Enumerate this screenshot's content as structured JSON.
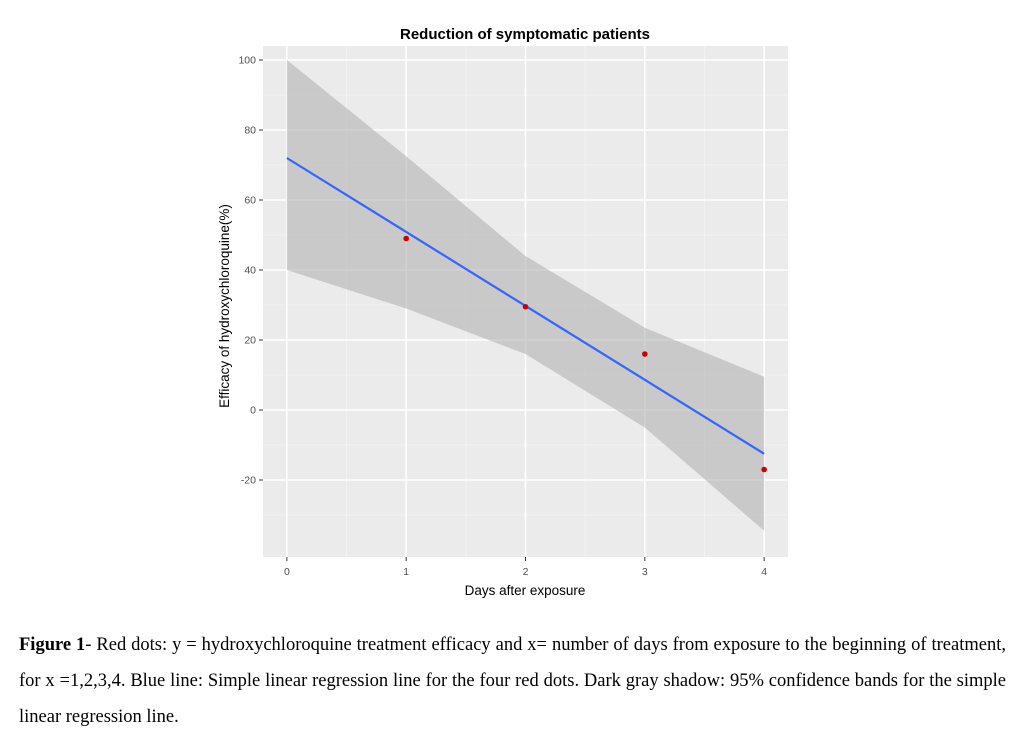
{
  "chart_data": {
    "type": "line",
    "title": "Reduction of symptomatic patients",
    "xlabel": "Days after exposure",
    "ylabel": "Efficacy of hydroxychloroquine(%)",
    "xlim": [
      -0.2,
      4.2
    ],
    "ylim": [
      -42,
      104
    ],
    "x_ticks": [
      0,
      1,
      2,
      3,
      4
    ],
    "y_ticks": [
      -20,
      0,
      20,
      40,
      60,
      80,
      100
    ],
    "grid": true,
    "legend": "none",
    "series": [
      {
        "kind": "points",
        "color": "#cc0000",
        "x": [
          1,
          2,
          3,
          4
        ],
        "y": [
          49,
          29.5,
          16,
          -17
        ]
      },
      {
        "kind": "regression-line",
        "color": "#3366ff",
        "x": [
          0,
          4
        ],
        "y": [
          72,
          -12.5
        ]
      },
      {
        "kind": "confidence-band",
        "color": "#b3b3b3",
        "x": [
          0,
          1,
          2,
          3,
          4
        ],
        "lower": [
          40,
          29,
          16,
          -5,
          -34.5
        ],
        "upper": [
          100,
          72.5,
          44,
          23.5,
          9.5
        ]
      }
    ]
  },
  "caption": {
    "label": "Figure 1",
    "text": "- Red dots: y = hydroxychloroquine treatment efficacy and x= number of days from exposure to the beginning of treatment, for x =1,2,3,4. Blue line: Simple linear regression line for the four red dots. Dark gray shadow: 95% confidence bands for the simple linear regression line."
  }
}
